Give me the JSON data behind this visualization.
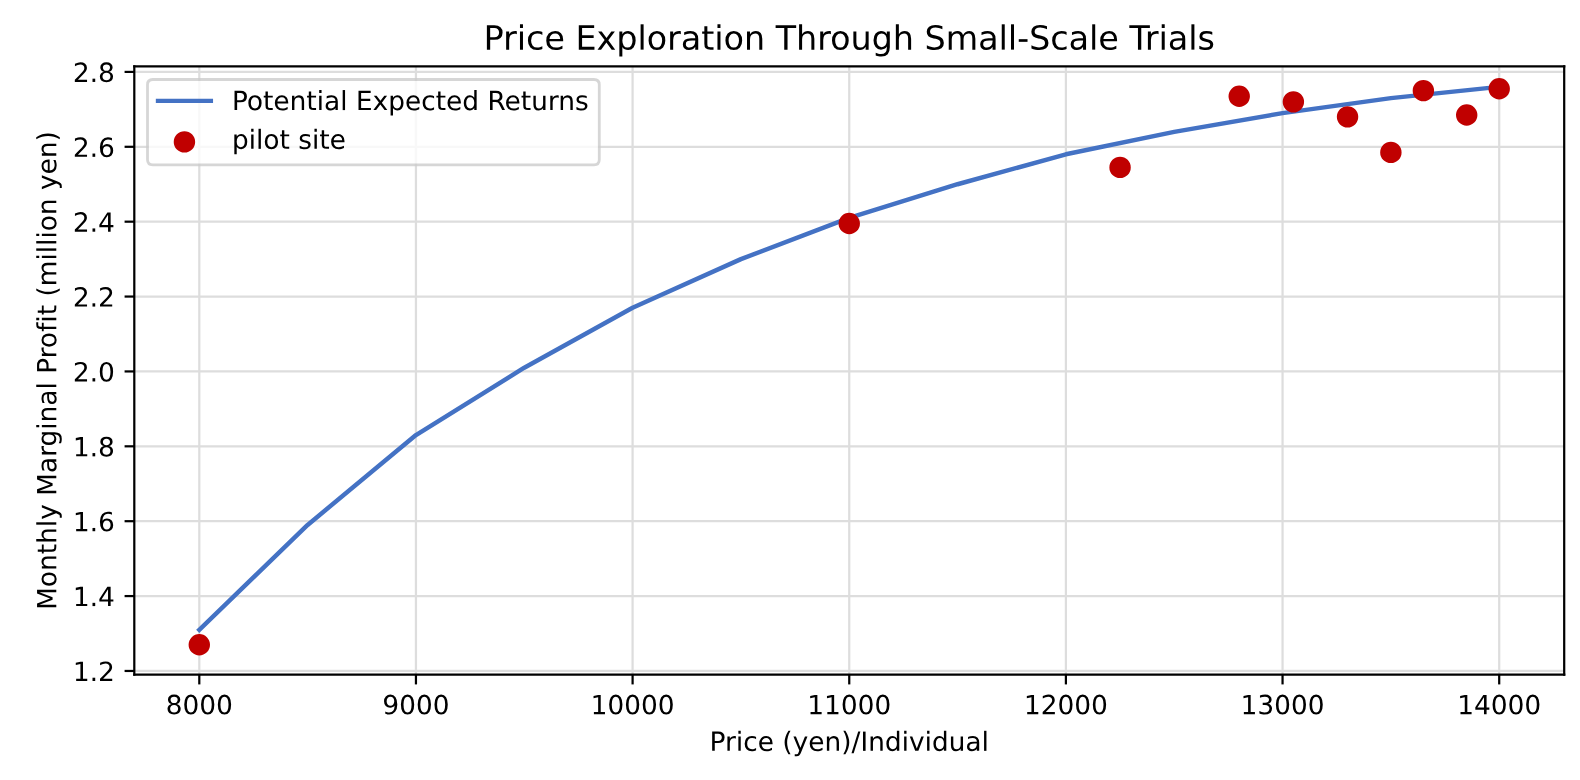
{
  "chart_data": {
    "type": "scatter",
    "title": "Price Exploration Through Small-Scale Trials",
    "xlabel": "Price (yen)/Individual",
    "ylabel": "Monthly Marginal Profit (million yen)",
    "series": [
      {
        "name": "Potential Expected Returns",
        "type": "line",
        "color": "#4472c4",
        "x": [
          8000,
          8500,
          9000,
          9500,
          10000,
          10500,
          11000,
          11500,
          12000,
          12500,
          13000,
          13500,
          14000
        ],
        "values": [
          1.31,
          1.59,
          1.83,
          2.01,
          2.17,
          2.3,
          2.41,
          2.5,
          2.58,
          2.64,
          2.69,
          2.73,
          2.76
        ]
      },
      {
        "name": "pilot site",
        "color": "#c00000",
        "x": [
          8000,
          11000,
          12250,
          12800,
          13050,
          13300,
          13500,
          13650,
          13850,
          14000
        ],
        "values": [
          1.27,
          2.395,
          2.545,
          2.735,
          2.72,
          2.68,
          2.585,
          2.75,
          2.685,
          2.755
        ]
      }
    ],
    "xlim": [
      7700,
      14300
    ],
    "xticks": [
      8000,
      9000,
      10000,
      11000,
      12000,
      13000,
      14000
    ],
    "ylim": [
      1.19,
      2.815
    ],
    "yticks": [
      {
        "value": 1.2,
        "label": "1.2"
      },
      {
        "value": 1.4,
        "label": "1.4"
      },
      {
        "value": 1.6,
        "label": "1.6"
      },
      {
        "value": 1.8,
        "label": "1.8"
      },
      {
        "value": 2.0,
        "label": "2.0"
      },
      {
        "value": 2.2,
        "label": "2.2"
      },
      {
        "value": 2.4,
        "label": "2.4"
      },
      {
        "value": 2.6,
        "label": "2.6"
      },
      {
        "value": 2.8,
        "label": "2.8"
      }
    ],
    "grid": true,
    "legend": "top left"
  }
}
